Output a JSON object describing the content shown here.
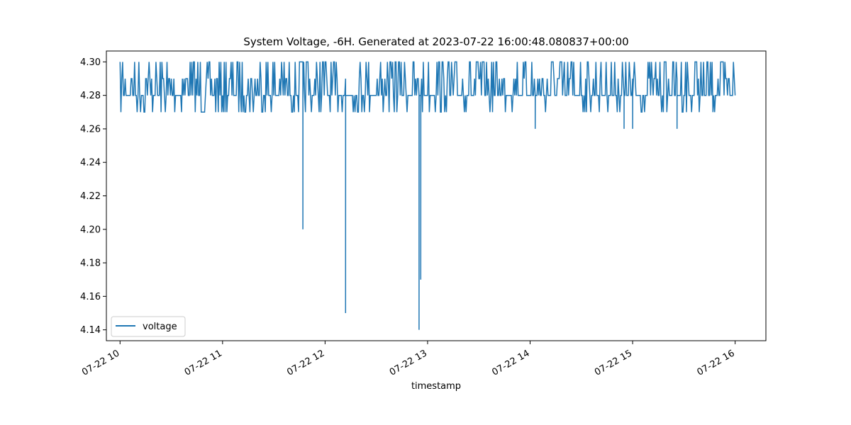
{
  "chart_data": {
    "type": "line",
    "title": "System Voltage, -6H. Generated at 2023-07-22 16:00:48.080837+00:00",
    "xlabel": "timestamp",
    "ylabel": "",
    "x_ticks": [
      "07-22 10",
      "07-22 11",
      "07-22 12",
      "07-22 13",
      "07-22 14",
      "07-22 15",
      "07-22 16"
    ],
    "y_ticks": [
      "4.14",
      "4.16",
      "4.18",
      "4.20",
      "4.22",
      "4.24",
      "4.26",
      "4.28",
      "4.30"
    ],
    "xlim": [
      "2023-07-22 09:52",
      "2023-07-22 16:18"
    ],
    "ylim": [
      4.1335,
      4.3065
    ],
    "grid": false,
    "legend_position": "lower-left",
    "series": [
      {
        "name": "voltage",
        "color": "#1f77b4",
        "x_range": [
          "2023-07-22 10:00",
          "2023-07-22 16:00"
        ],
        "typical_min": 4.27,
        "typical_max": 4.3,
        "dips": [
          {
            "x": "2023-07-22 11:47",
            "y": 4.2
          },
          {
            "x": "2023-07-22 12:12",
            "y": 4.15
          },
          {
            "x": "2023-07-22 12:55",
            "y": 4.14
          },
          {
            "x": "2023-07-22 12:56",
            "y": 4.17
          },
          {
            "x": "2023-07-22 14:03",
            "y": 4.26
          },
          {
            "x": "2023-07-22 14:55",
            "y": 4.26
          },
          {
            "x": "2023-07-22 15:00",
            "y": 4.26
          },
          {
            "x": "2023-07-22 15:26",
            "y": 4.26
          }
        ]
      }
    ]
  }
}
